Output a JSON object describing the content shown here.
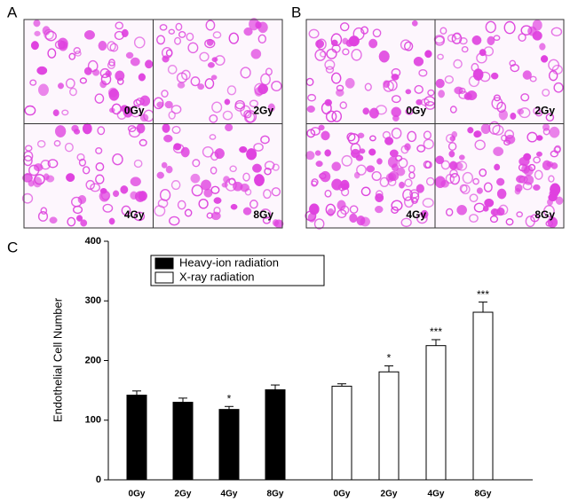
{
  "panels": [
    {
      "letter": "A",
      "labels": [
        "0Gy",
        "2Gy",
        "4Gy",
        "8Gy"
      ]
    },
    {
      "letter": "B",
      "labels": [
        "0Gy",
        "2Gy",
        "4Gy",
        "8Gy"
      ]
    }
  ],
  "chart_letter": "C",
  "chart_data": {
    "type": "bar",
    "ylabel": "Endothelial Cell Number",
    "categories": [
      "0Gy",
      "2Gy",
      "4Gy",
      "8Gy",
      "0Gy",
      "2Gy",
      "4Gy",
      "8Gy"
    ],
    "series": [
      {
        "name": "Heavy-ion radiation",
        "color": "#000000",
        "values": [
          142,
          130,
          118,
          151,
          null,
          null,
          null,
          null
        ],
        "errors": [
          7,
          7,
          5,
          8,
          null,
          null,
          null,
          null
        ],
        "significance": [
          null,
          null,
          "*",
          null,
          null,
          null,
          null,
          null
        ]
      },
      {
        "name": "X-ray radiation",
        "color": "#ffffff",
        "values": [
          null,
          null,
          null,
          null,
          157,
          181,
          225,
          281
        ],
        "errors": [
          null,
          null,
          null,
          null,
          4,
          10,
          10,
          17
        ],
        "significance": [
          null,
          null,
          null,
          null,
          null,
          "*",
          "***",
          "***"
        ]
      }
    ],
    "ylim": [
      0,
      400
    ],
    "yticks": [
      0,
      100,
      200,
      300,
      400
    ]
  }
}
